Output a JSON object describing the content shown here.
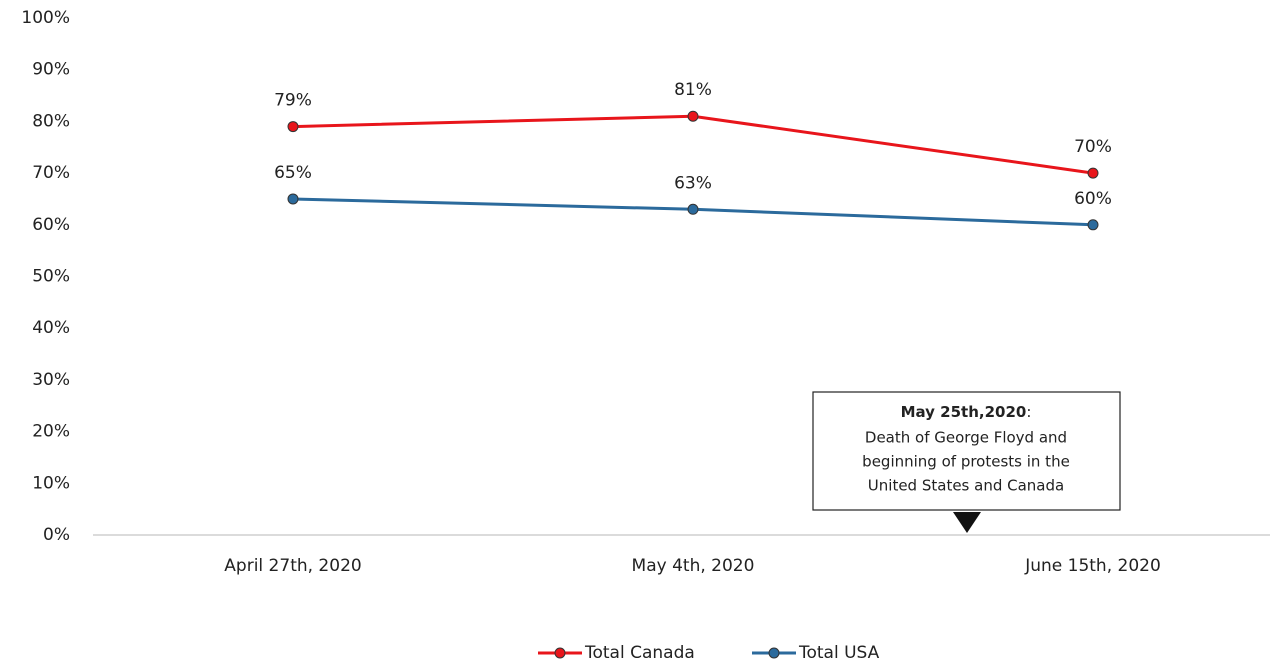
{
  "chart_data": {
    "type": "line",
    "categories": [
      "April 27th, 2020",
      "May 4th, 2020",
      "June 15th, 2020"
    ],
    "series": [
      {
        "name": "Total Canada",
        "color": "#e8151b",
        "values": [
          79,
          81,
          70
        ],
        "value_labels": [
          "79%",
          "81%",
          "70%"
        ]
      },
      {
        "name": "Total USA",
        "color": "#2b6a9c",
        "values": [
          65,
          63,
          60
        ],
        "value_labels": [
          "65%",
          "63%",
          "60%"
        ]
      }
    ],
    "ylim": [
      0,
      100
    ],
    "yticks": [
      {
        "value": 0,
        "label": "0%"
      },
      {
        "value": 10,
        "label": "10%"
      },
      {
        "value": 20,
        "label": "20%"
      },
      {
        "value": 30,
        "label": "30%"
      },
      {
        "value": 40,
        "label": "40%"
      },
      {
        "value": 50,
        "label": "50%"
      },
      {
        "value": 60,
        "label": "60%"
      },
      {
        "value": 70,
        "label": "70%"
      },
      {
        "value": 80,
        "label": "80%"
      },
      {
        "value": 90,
        "label": "90%"
      },
      {
        "value": 100,
        "label": "100%"
      }
    ],
    "grid": false,
    "legend": "bottom",
    "annotation": {
      "heading": "May 25th,2020",
      "heading_end": ":",
      "lines": [
        "Death of George Floyd and",
        "beginning of protests in the",
        "United States and Canada"
      ]
    }
  }
}
